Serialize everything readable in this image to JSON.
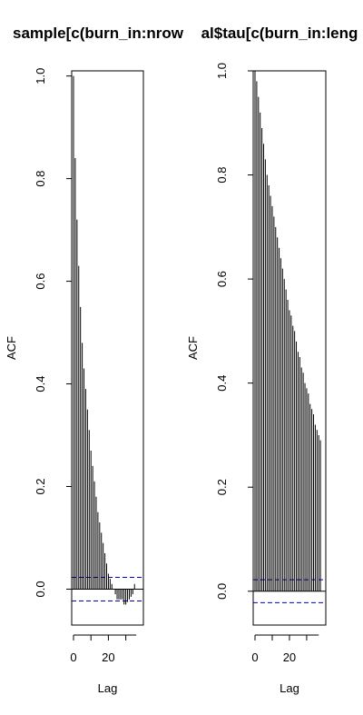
{
  "chart_data": [
    {
      "type": "bar",
      "title": "sample[c(burn_in:nrow",
      "xlabel": "Lag",
      "ylabel": "ACF",
      "xticks": [
        "0",
        "20"
      ],
      "yticks": [
        "0.0",
        "0.2",
        "0.4",
        "0.6",
        "0.8",
        "1.0"
      ],
      "ylim": [
        -0.07,
        1.01
      ],
      "xlim": [
        0,
        38
      ],
      "grid": false,
      "ci": 0.023,
      "ci_color": "#0000cc",
      "lags": [
        0,
        1,
        2,
        3,
        4,
        5,
        6,
        7,
        8,
        9,
        10,
        11,
        12,
        13,
        14,
        15,
        16,
        17,
        18,
        19,
        20,
        21,
        22,
        23,
        24,
        25,
        26,
        27,
        28,
        29,
        30,
        31,
        32,
        33,
        34,
        35
      ],
      "values": [
        1.0,
        0.84,
        0.72,
        0.63,
        0.55,
        0.48,
        0.43,
        0.39,
        0.35,
        0.31,
        0.27,
        0.24,
        0.21,
        0.18,
        0.15,
        0.13,
        0.11,
        0.09,
        0.07,
        0.05,
        0.03,
        0.02,
        0.01,
        0.0,
        -0.01,
        -0.02,
        -0.02,
        -0.02,
        -0.02,
        -0.03,
        -0.03,
        -0.025,
        -0.02,
        -0.015,
        -0.01,
        0.01
      ]
    },
    {
      "type": "bar",
      "title": "al$tau[c(burn_in:leng",
      "xlabel": "Lag",
      "ylabel": "ACF",
      "xticks": [
        "0",
        "20"
      ],
      "yticks": [
        "0.0",
        "0.2",
        "0.4",
        "0.6",
        "0.8",
        "1.0"
      ],
      "ylim": [
        -0.065,
        1.0
      ],
      "xlim": [
        0,
        39
      ],
      "grid": false,
      "ci": 0.022,
      "ci_color": "#0000cc",
      "lags": [
        0,
        1,
        2,
        3,
        4,
        5,
        6,
        7,
        8,
        9,
        10,
        11,
        12,
        13,
        14,
        15,
        16,
        17,
        18,
        19,
        20,
        21,
        22,
        23,
        24,
        25,
        26,
        27,
        28,
        29,
        30,
        31,
        32,
        33,
        34,
        35,
        36,
        37,
        38
      ],
      "values": [
        1.0,
        0.98,
        0.95,
        0.92,
        0.89,
        0.86,
        0.83,
        0.8,
        0.78,
        0.76,
        0.74,
        0.72,
        0.7,
        0.68,
        0.66,
        0.64,
        0.62,
        0.6,
        0.58,
        0.56,
        0.54,
        0.53,
        0.51,
        0.5,
        0.48,
        0.46,
        0.45,
        0.43,
        0.42,
        0.4,
        0.39,
        0.38,
        0.36,
        0.35,
        0.34,
        0.32,
        0.31,
        0.3,
        0.29
      ]
    }
  ]
}
